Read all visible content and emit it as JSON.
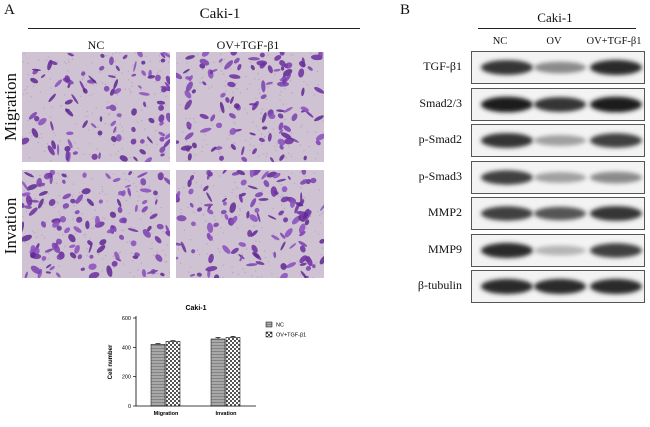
{
  "panelA": {
    "letter": "A",
    "title": "Caki-1",
    "columns": [
      "NC",
      "OV+TGF-β1"
    ],
    "rows": [
      "Migration",
      "Invation"
    ]
  },
  "panelB": {
    "letter": "B",
    "title": "Caki-1",
    "lanes": [
      "NC",
      "OV",
      "OV+TGF-β1"
    ],
    "bands": [
      {
        "label": "TGF-β1",
        "intensity": [
          0.85,
          0.45,
          0.9
        ]
      },
      {
        "label": "Smad2/3",
        "intensity": [
          0.95,
          0.85,
          0.95
        ]
      },
      {
        "label": "p-Smad2",
        "intensity": [
          0.85,
          0.35,
          0.8
        ]
      },
      {
        "label": "p-Smad3",
        "intensity": [
          0.8,
          0.35,
          0.45
        ]
      },
      {
        "label": "MMP2",
        "intensity": [
          0.8,
          0.7,
          0.85
        ]
      },
      {
        "label": "MMP9",
        "intensity": [
          0.9,
          0.25,
          0.8
        ]
      },
      {
        "label": "β-tubulin",
        "intensity": [
          0.9,
          0.9,
          0.9
        ]
      }
    ]
  },
  "chart_data": {
    "type": "bar",
    "title": "Caki-1",
    "categories": [
      "Migration",
      "Invation"
    ],
    "series": [
      {
        "name": "NC",
        "values": [
          420,
          457
        ],
        "errors": [
          5,
          10
        ],
        "color": "#9a9a9a"
      },
      {
        "name": "OV+TGF-β1",
        "values": [
          440,
          467
        ],
        "errors": [
          5,
          8
        ],
        "color": "#e8e8e8"
      }
    ],
    "xlabel": "",
    "ylabel": "Cell number",
    "ylim": [
      0,
      600
    ],
    "yticks": [
      0,
      200,
      400,
      600
    ],
    "legend": "top-right",
    "grid": false
  }
}
